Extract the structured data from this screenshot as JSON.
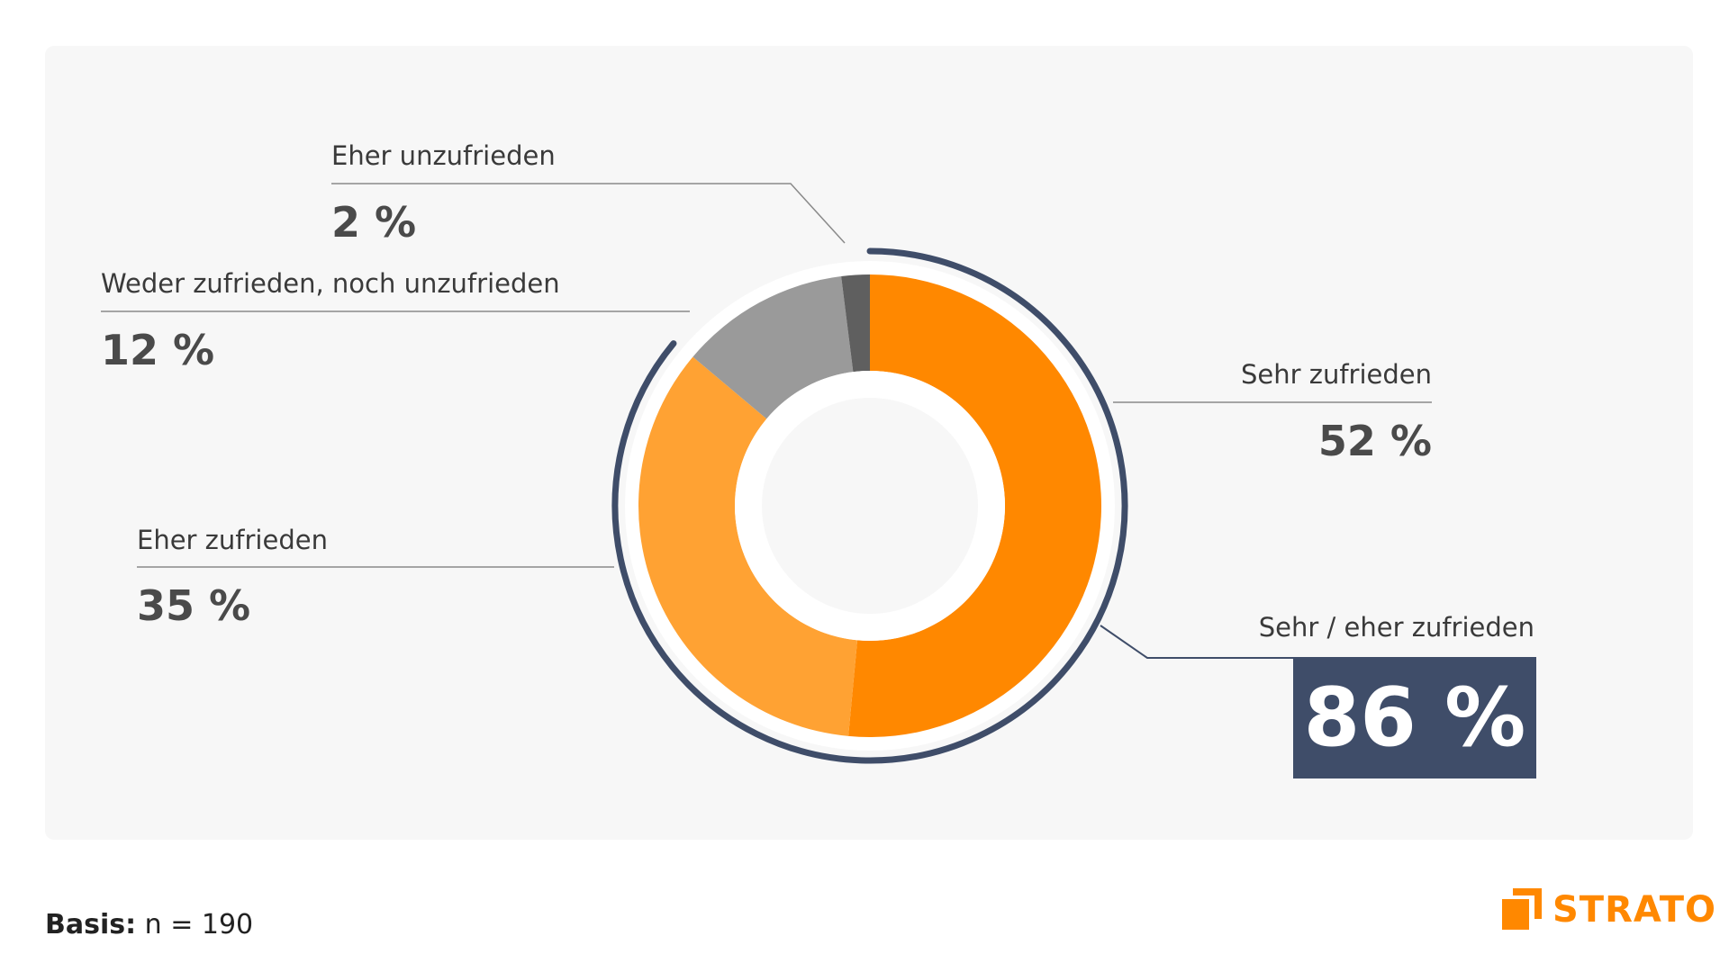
{
  "chart_data": {
    "type": "pie",
    "donut": true,
    "slices": [
      {
        "name": "Sehr zufrieden",
        "value": 52,
        "label": "52 %",
        "color": "#ff8800"
      },
      {
        "name": "Eher zufrieden",
        "value": 35,
        "label": "35 %",
        "color": "#ffa233"
      },
      {
        "name": "Weder zufrieden, noch unzufrieden",
        "value": 12,
        "label": "12 %",
        "color": "#9a9a9a"
      },
      {
        "name": "Eher unzufrieden",
        "value": 2,
        "label": "2 %",
        "color": "#5f5f5f"
      }
    ],
    "summary": {
      "label": "Sehr / eher zufrieden",
      "value": 86,
      "text": "86 %",
      "color": "#3f4d69"
    }
  },
  "footer": {
    "basis_label": "Basis:",
    "basis_value": "n = 190"
  },
  "brand": {
    "name": "STRATO",
    "color": "#ff8800"
  }
}
